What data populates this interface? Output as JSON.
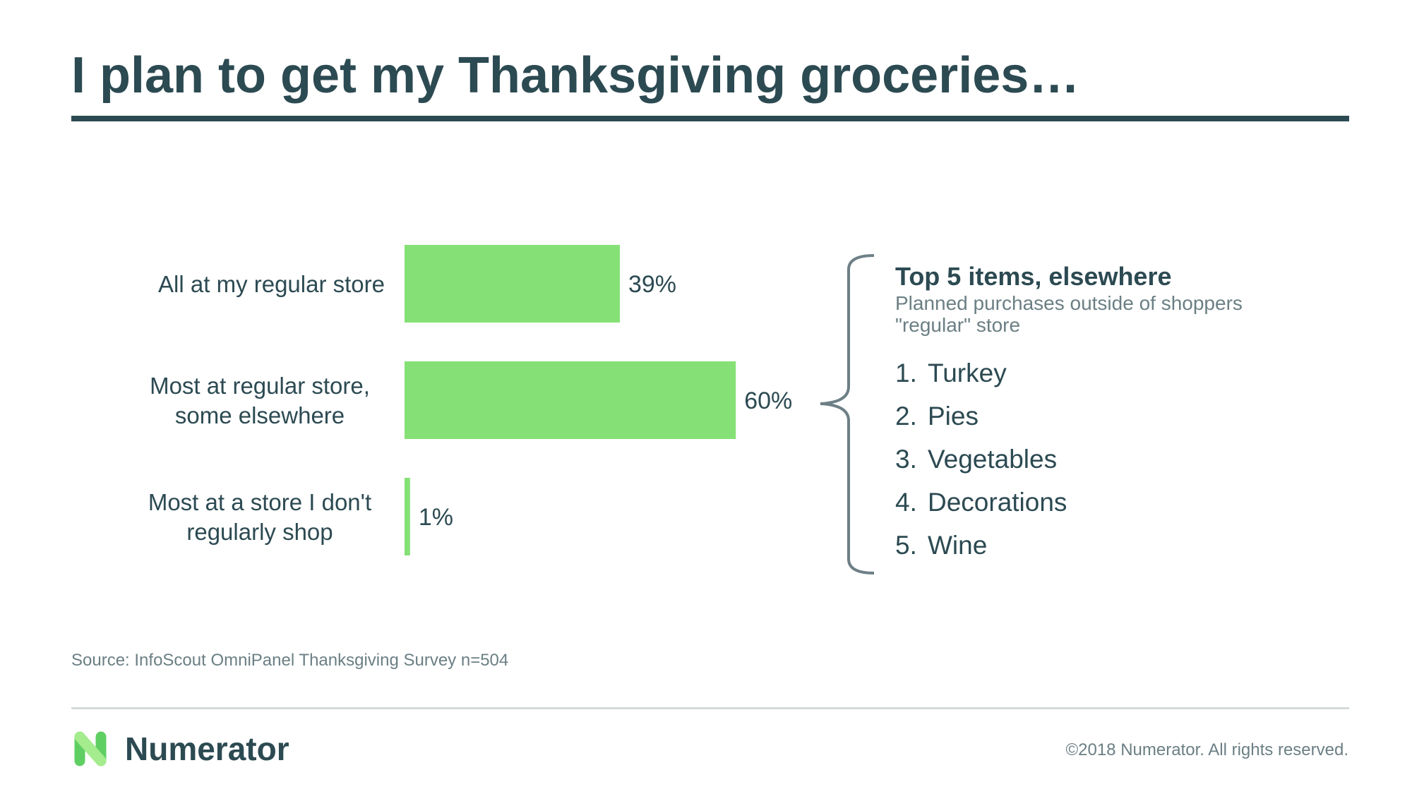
{
  "header": {
    "title": "I plan to get my Thanksgiving groceries…"
  },
  "chart_data": {
    "type": "bar",
    "orientation": "horizontal",
    "categories": [
      [
        "All at my regular store"
      ],
      [
        "Most at regular store,",
        "some elsewhere"
      ],
      [
        "Most at a store I don't",
        "regularly shop"
      ]
    ],
    "values": [
      39,
      60,
      1
    ],
    "value_labels": [
      "39%",
      "60%",
      "1%"
    ],
    "unit": "%",
    "xlim": [
      0,
      100
    ],
    "grid": false,
    "legend": false,
    "bar_color": "#85e175"
  },
  "side_panel": {
    "title": "Top 5 items, elsewhere",
    "subtitle": "Planned purchases outside of shoppers \"regular\" store",
    "items": [
      {
        "num": "1.",
        "label": "Turkey"
      },
      {
        "num": "2.",
        "label": "Pies"
      },
      {
        "num": "3.",
        "label": "Vegetables"
      },
      {
        "num": "4.",
        "label": "Decorations"
      },
      {
        "num": "5.",
        "label": "Wine"
      }
    ]
  },
  "footer": {
    "source": "Source: InfoScout OmniPanel Thanksgiving Survey n=504",
    "brand": "Numerator",
    "copyright": "©2018 Numerator. All rights reserved."
  },
  "colors": {
    "text": "#2c4a52",
    "muted": "#6b7f84",
    "bar": "#85e175",
    "brace": "#6e7f86"
  }
}
